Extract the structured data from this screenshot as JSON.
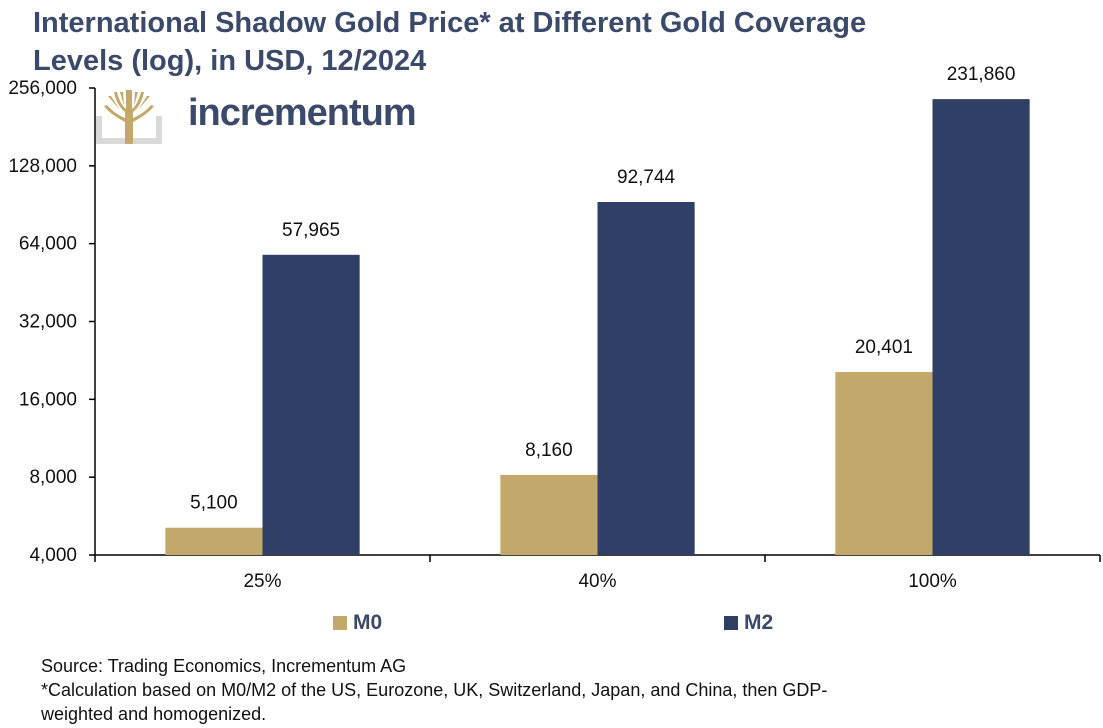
{
  "title_line1": "International Shadow Gold Price* at Different Gold Coverage",
  "title_line2": "Levels (log), in USD, 12/2024",
  "logo_text": "incrementum",
  "colors": {
    "M0": "#c2a96b",
    "M2": "#2f3f66",
    "title": "#3b4a6b"
  },
  "chart_data": {
    "type": "bar",
    "scale": "log2",
    "title": "International Shadow Gold Price* at Different Gold Coverage Levels (log), in USD, 12/2024",
    "xlabel": "",
    "ylabel": "",
    "categories": [
      "25%",
      "40%",
      "100%"
    ],
    "ylim": [
      4000,
      256000
    ],
    "yticks": [
      4000,
      8000,
      16000,
      32000,
      64000,
      128000,
      256000
    ],
    "ytick_labels": [
      "4,000",
      "8,000",
      "16,000",
      "32,000",
      "64,000",
      "128,000",
      "256,000"
    ],
    "series": [
      {
        "name": "M0",
        "values": [
          5100,
          8160,
          20401
        ],
        "labels": [
          "5,100",
          "8,160",
          "20,401"
        ]
      },
      {
        "name": "M2",
        "values": [
          57965,
          92744,
          231860
        ],
        "labels": [
          "57,965",
          "92,744",
          "231,860"
        ]
      }
    ],
    "legend_position": "bottom"
  },
  "footer": {
    "source": "Source: Trading Economics, Incrementum AG",
    "note_line1": "*Calculation based on M0/M2 of the US, Eurozone, UK, Switzerland, Japan, and China, then GDP-",
    "note_line2": "weighted and homogenized."
  }
}
